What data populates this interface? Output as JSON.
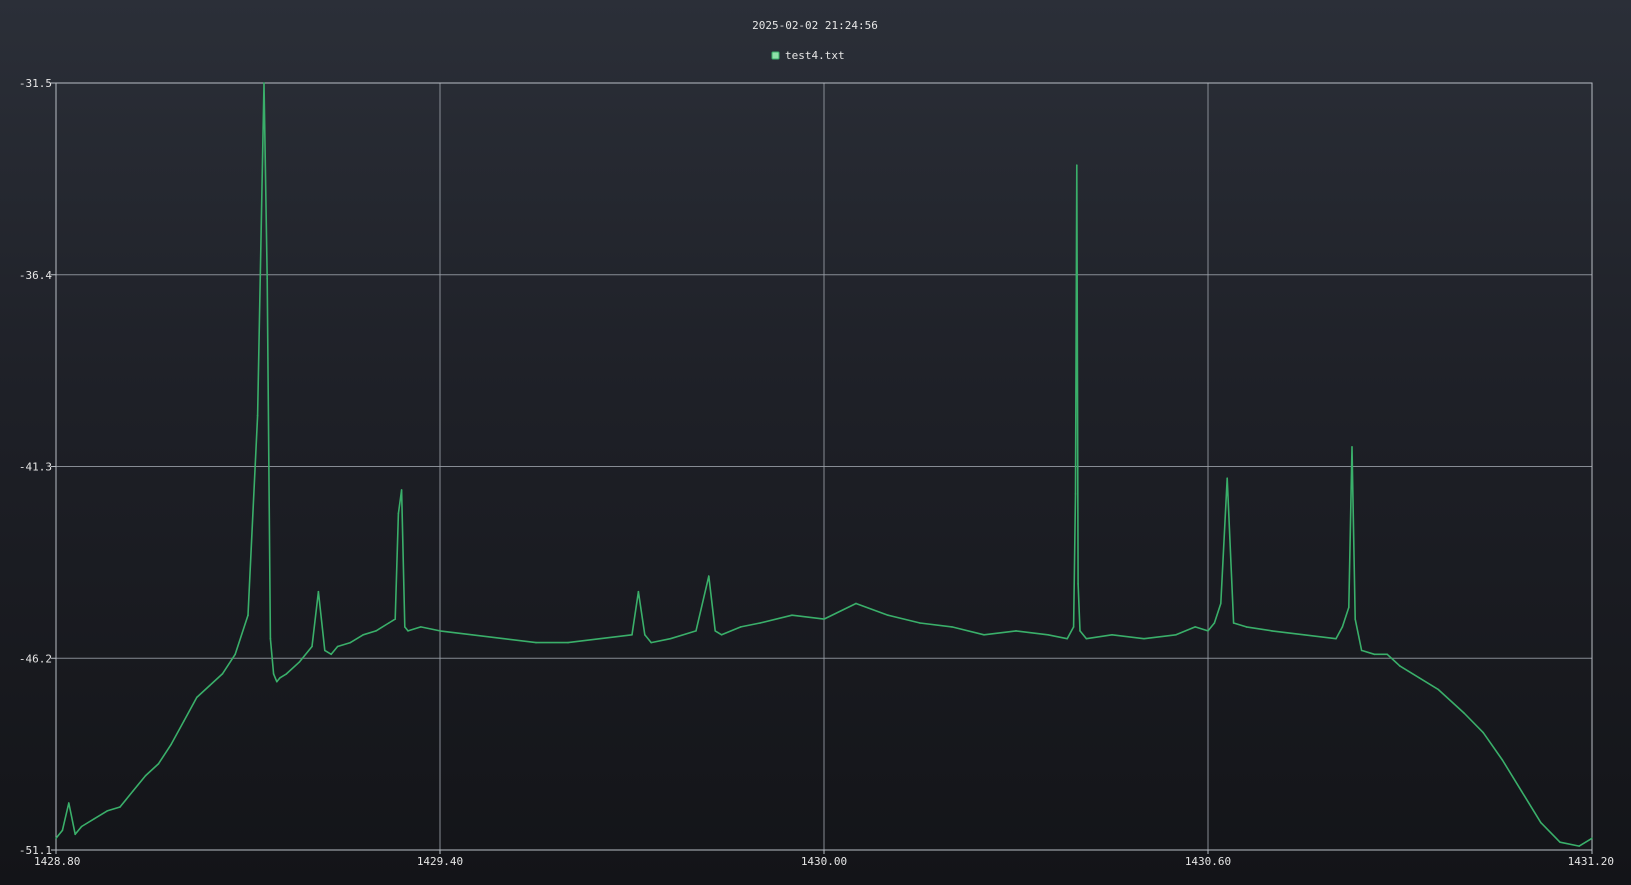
{
  "title": "2025-02-02 21:24:56",
  "legend": {
    "label": "test4.txt",
    "placement": "top-center"
  },
  "colors": {
    "series": "#3aaf6a",
    "legend_fill": "#8ee0a8",
    "grid": "#9aa0a8",
    "text": "#e6e6e6"
  },
  "chart_data": {
    "type": "line",
    "title": "2025-02-02 21:24:56",
    "xlabel": "",
    "ylabel": "",
    "xlim": [
      1428.8,
      1431.2
    ],
    "ylim": [
      -51.1,
      -31.5
    ],
    "grid": true,
    "x_ticks": [
      1428.8,
      1429.4,
      1430.0,
      1430.6,
      1431.2
    ],
    "x_tick_labels": [
      "1428.80",
      "1429.40",
      "1430.00",
      "1430.60",
      "1431.20"
    ],
    "y_ticks": [
      -31.5,
      -36.4,
      -41.3,
      -46.2,
      -51.1
    ],
    "y_tick_labels": [
      "-31.5",
      "-36.4",
      "-41.3",
      "-46.2",
      "-51.1"
    ],
    "series": [
      {
        "name": "test4.txt",
        "color": "#3aaf6a",
        "x": [
          1428.8,
          1428.81,
          1428.82,
          1428.83,
          1428.84,
          1428.86,
          1428.88,
          1428.9,
          1428.92,
          1428.94,
          1428.96,
          1428.98,
          1429.0,
          1429.02,
          1429.04,
          1429.06,
          1429.08,
          1429.1,
          1429.115,
          1429.125,
          1429.13,
          1429.135,
          1429.14,
          1429.145,
          1429.15,
          1429.16,
          1429.18,
          1429.2,
          1429.21,
          1429.22,
          1429.23,
          1429.24,
          1429.26,
          1429.28,
          1429.3,
          1429.32,
          1429.33,
          1429.335,
          1429.34,
          1429.345,
          1429.35,
          1429.37,
          1429.4,
          1429.45,
          1429.5,
          1429.55,
          1429.6,
          1429.65,
          1429.7,
          1429.71,
          1429.72,
          1429.73,
          1429.76,
          1429.8,
          1429.82,
          1429.83,
          1429.84,
          1429.87,
          1429.9,
          1429.95,
          1430.0,
          1430.05,
          1430.1,
          1430.15,
          1430.2,
          1430.25,
          1430.3,
          1430.35,
          1430.38,
          1430.39,
          1430.393,
          1430.395,
          1430.397,
          1430.4,
          1430.41,
          1430.45,
          1430.5,
          1430.55,
          1430.58,
          1430.6,
          1430.61,
          1430.62,
          1430.63,
          1430.64,
          1430.66,
          1430.7,
          1430.75,
          1430.8,
          1430.81,
          1430.82,
          1430.825,
          1430.83,
          1430.84,
          1430.86,
          1430.88,
          1430.9,
          1430.93,
          1430.96,
          1431.0,
          1431.03,
          1431.06,
          1431.09,
          1431.12,
          1431.15,
          1431.18,
          1431.2
        ],
        "values": [
          -50.8,
          -50.6,
          -49.9,
          -50.7,
          -50.5,
          -50.3,
          -50.1,
          -50.0,
          -49.6,
          -49.2,
          -48.9,
          -48.4,
          -47.8,
          -47.2,
          -46.9,
          -46.6,
          -46.1,
          -45.1,
          -40.0,
          -31.5,
          -36.5,
          -45.7,
          -46.6,
          -46.8,
          -46.7,
          -46.6,
          -46.3,
          -45.9,
          -44.5,
          -46.0,
          -46.1,
          -45.9,
          -45.8,
          -45.6,
          -45.5,
          -45.3,
          -45.2,
          -42.5,
          -41.9,
          -45.4,
          -45.5,
          -45.4,
          -45.5,
          -45.6,
          -45.7,
          -45.8,
          -45.8,
          -45.7,
          -45.6,
          -44.5,
          -45.6,
          -45.8,
          -45.7,
          -45.5,
          -44.1,
          -45.5,
          -45.6,
          -45.4,
          -45.3,
          -45.1,
          -45.2,
          -44.8,
          -45.1,
          -45.3,
          -45.4,
          -45.6,
          -45.5,
          -45.6,
          -45.7,
          -45.4,
          -42.0,
          -33.6,
          -44.3,
          -45.5,
          -45.7,
          -45.6,
          -45.7,
          -45.6,
          -45.4,
          -45.5,
          -45.3,
          -44.8,
          -41.6,
          -45.3,
          -45.4,
          -45.5,
          -45.6,
          -45.7,
          -45.4,
          -44.9,
          -40.8,
          -45.2,
          -46.0,
          -46.1,
          -46.1,
          -46.4,
          -46.7,
          -47.0,
          -47.6,
          -48.1,
          -48.8,
          -49.6,
          -50.4,
          -50.9,
          -51.0,
          -50.8
        ]
      }
    ]
  }
}
